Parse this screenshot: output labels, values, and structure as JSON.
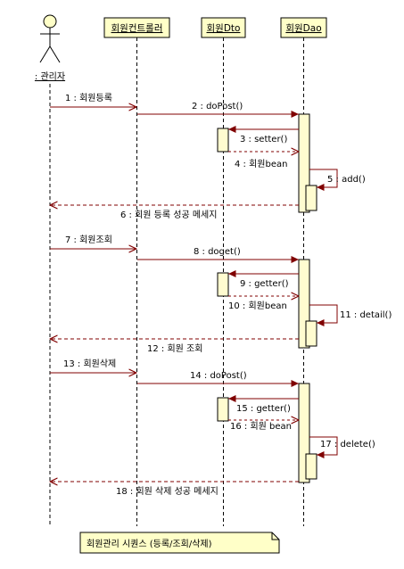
{
  "actor": {
    "label": ": 관리자"
  },
  "participants": [
    {
      "name": "회원컨트롤러"
    },
    {
      "name": "회원Dto"
    },
    {
      "name": "회원Dao"
    }
  ],
  "messages": [
    {
      "label": "1 : 회원등록",
      "from": "actor",
      "to": "controller",
      "kind": "sync"
    },
    {
      "label": "2 : doPost()",
      "from": "controller",
      "to": "dao",
      "kind": "sync"
    },
    {
      "label": "3 : setter()",
      "from": "dao",
      "to": "dto",
      "kind": "sync"
    },
    {
      "label": "4 : 회원bean",
      "from": "dto",
      "to": "dao",
      "kind": "return"
    },
    {
      "label": "5 : add()",
      "from": "dao",
      "to": "dao",
      "kind": "self"
    },
    {
      "label": "6 : 회원 등록 성공 메세지",
      "from": "dao",
      "to": "actor",
      "kind": "return"
    },
    {
      "label": "7 : 회원조회",
      "from": "actor",
      "to": "controller",
      "kind": "sync"
    },
    {
      "label": "8 : doget()",
      "from": "controller",
      "to": "dao",
      "kind": "sync"
    },
    {
      "label": "9 : getter()",
      "from": "dao",
      "to": "dto",
      "kind": "sync"
    },
    {
      "label": "10 : 회원bean",
      "from": "dto",
      "to": "dao",
      "kind": "return"
    },
    {
      "label": "11 : detail()",
      "from": "dao",
      "to": "dao",
      "kind": "self"
    },
    {
      "label": "12 : 회원 조회",
      "from": "dao",
      "to": "actor",
      "kind": "return"
    },
    {
      "label": "13 : 회원삭제",
      "from": "actor",
      "to": "controller",
      "kind": "sync"
    },
    {
      "label": "14 : doPost()",
      "from": "controller",
      "to": "dao",
      "kind": "sync"
    },
    {
      "label": "15 : getter()",
      "from": "dao",
      "to": "dto",
      "kind": "sync"
    },
    {
      "label": "16 : 회원 bean",
      "from": "dto",
      "to": "dao",
      "kind": "return"
    },
    {
      "label": "17 : delete()",
      "from": "dao",
      "to": "dao",
      "kind": "self"
    },
    {
      "label": "18 : 회원 삭제 성공 메세지",
      "from": "dao",
      "to": "actor",
      "kind": "return"
    }
  ],
  "note": {
    "text": "회원관리 시퀀스 (등록/조회/삭제)"
  },
  "colors": {
    "box_fill": "#ffffc8",
    "line": "#000000",
    "arrow": "#800000",
    "activation_fill": "#fffcd0"
  }
}
